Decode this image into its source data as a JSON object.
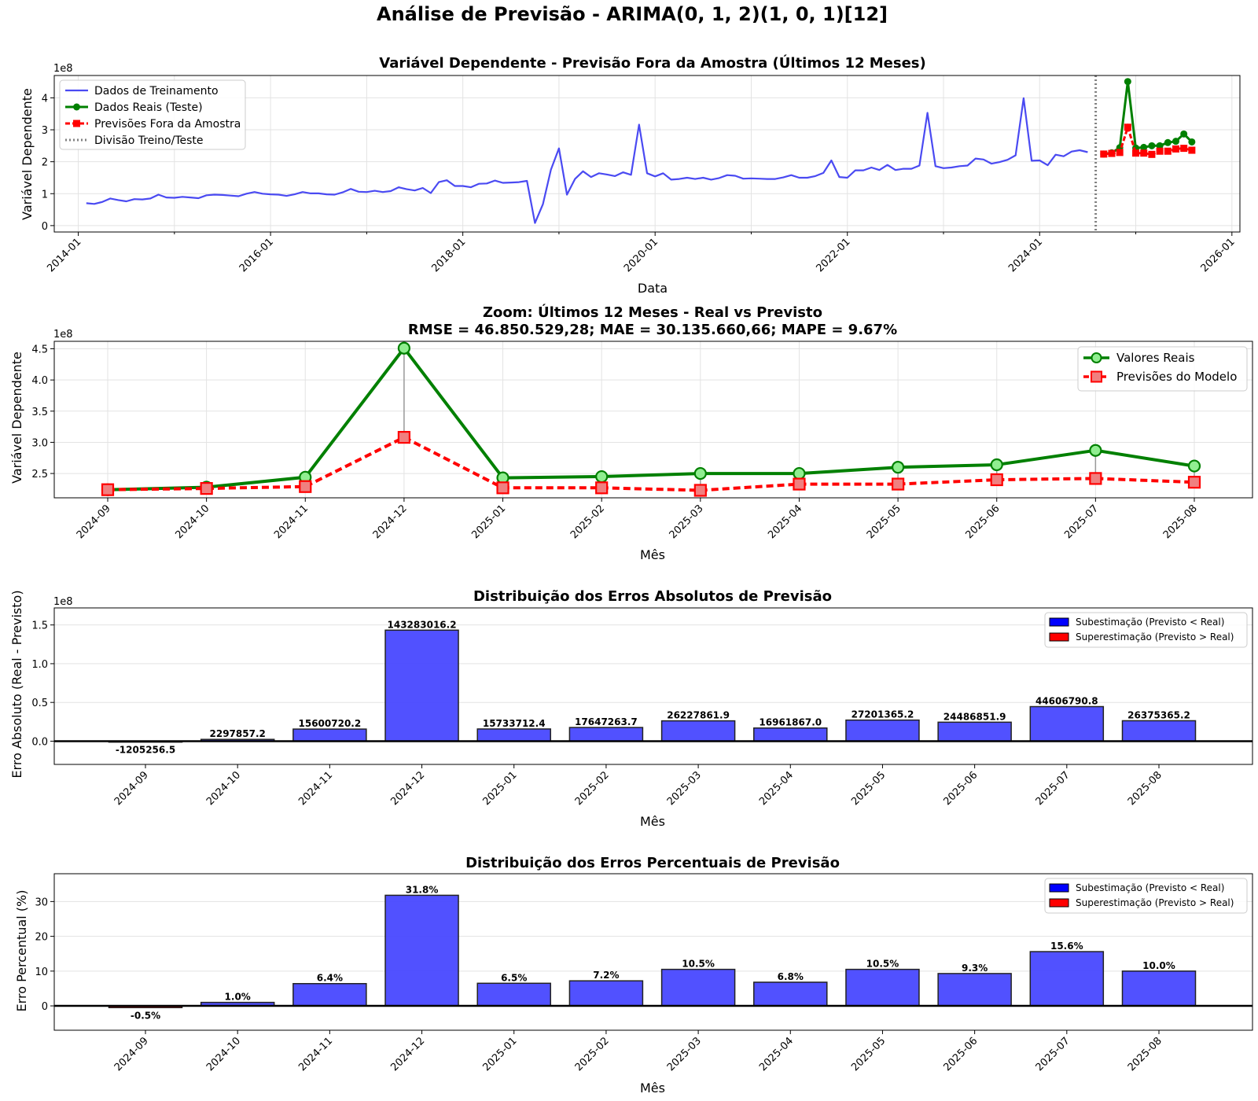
{
  "figure": {
    "title": "Análise de Previsão - ARIMA(0, 1, 2)(1, 0, 1)[12]"
  },
  "colors": {
    "train": "#4a4af2",
    "real": "#008000",
    "real_marker_fill": "#90ee90",
    "forecast": "#ff0000",
    "forecast_marker_fill": "#f08080",
    "under": "#4b4bff",
    "over": "#ff0000",
    "split": "#808080"
  },
  "chart_data": [
    {
      "id": "overview",
      "type": "line",
      "title": "Variável Dependente - Previsão Fora da Amostra (Últimos 12 Meses)",
      "xlabel": "Data",
      "ylabel": "Variável Dependente",
      "y_offset_label": "1e8",
      "y_scale": 100000000,
      "ylim": [
        -0.2,
        4.7
      ],
      "xlim": [
        "2013-10",
        "2026-02"
      ],
      "xticks": [
        "2014-01",
        "2016-01",
        "2018-01",
        "2020-01",
        "2022-01",
        "2024-01",
        "2026-01"
      ],
      "yticks": [
        0,
        1,
        2,
        3,
        4
      ],
      "split_date": "2024-08",
      "legend": {
        "position": "top-left",
        "entries": [
          "Dados de Treinamento",
          "Dados Reais (Teste)",
          "Previsões Fora da Amostra",
          "Divisão Treino/Teste"
        ]
      },
      "train": {
        "start": "2014-02",
        "values": [
          0.7,
          0.68,
          0.74,
          0.85,
          0.8,
          0.76,
          0.83,
          0.82,
          0.85,
          0.97,
          0.88,
          0.87,
          0.9,
          0.88,
          0.86,
          0.95,
          0.97,
          0.96,
          0.94,
          0.92,
          1.0,
          1.05,
          1.0,
          0.98,
          0.97,
          0.93,
          0.98,
          1.05,
          1.01,
          1.01,
          0.98,
          0.97,
          1.04,
          1.15,
          1.06,
          1.05,
          1.09,
          1.05,
          1.08,
          1.2,
          1.14,
          1.1,
          1.18,
          1.02,
          1.36,
          1.42,
          1.24,
          1.24,
          1.2,
          1.31,
          1.32,
          1.41,
          1.34,
          1.35,
          1.36,
          1.4,
          0.08,
          0.67,
          1.75,
          2.42,
          0.97,
          1.46,
          1.7,
          1.52,
          1.64,
          1.6,
          1.55,
          1.67,
          1.59,
          3.16,
          1.64,
          1.54,
          1.64,
          1.44,
          1.46,
          1.5,
          1.46,
          1.5,
          1.44,
          1.49,
          1.58,
          1.56,
          1.47,
          1.48,
          1.47,
          1.46,
          1.46,
          1.51,
          1.58,
          1.5,
          1.5,
          1.55,
          1.65,
          2.04,
          1.52,
          1.5,
          1.73,
          1.73,
          1.82,
          1.74,
          1.9,
          1.74,
          1.78,
          1.78,
          1.88,
          3.53,
          1.86,
          1.8,
          1.82,
          1.86,
          1.88,
          2.1,
          2.07,
          1.94,
          1.99,
          2.06,
          2.2,
          3.99,
          2.03,
          2.04,
          1.89,
          2.22,
          2.17,
          2.32,
          2.36,
          2.3
        ]
      },
      "test": {
        "start": "2024-09",
        "real": [
          2.24,
          2.28,
          2.44,
          4.51,
          2.43,
          2.45,
          2.5,
          2.5,
          2.6,
          2.64,
          2.87,
          2.62
        ],
        "forecast": [
          2.24,
          2.26,
          2.29,
          3.08,
          2.27,
          2.27,
          2.23,
          2.33,
          2.33,
          2.4,
          2.42,
          2.36
        ]
      }
    },
    {
      "id": "zoom",
      "type": "line",
      "title": "Zoom: Últimos 12 Meses - Real vs Previsto",
      "subtitle": "RMSE = 46.850.529,28; MAE = 30.135.660,66; MAPE = 9.67%",
      "xlabel": "Mês",
      "ylabel": "Variável Dependente",
      "y_offset_label": "1e8",
      "y_scale": 100000000,
      "ylim": [
        2.11,
        4.62
      ],
      "yticks": [
        "2.5",
        "3.0",
        "3.5",
        "4.0",
        "4.5"
      ],
      "categories": [
        "2024-09",
        "2024-10",
        "2024-11",
        "2024-12",
        "2025-01",
        "2025-02",
        "2025-03",
        "2025-04",
        "2025-05",
        "2025-06",
        "2025-07",
        "2025-08"
      ],
      "legend": {
        "position": "top-right",
        "entries": [
          "Valores Reais",
          "Previsões do Modelo"
        ]
      },
      "series": [
        {
          "name": "Valores Reais",
          "values": [
            2.24,
            2.28,
            2.44,
            4.51,
            2.43,
            2.45,
            2.5,
            2.5,
            2.6,
            2.64,
            2.87,
            2.62
          ]
        },
        {
          "name": "Previsões do Modelo",
          "values": [
            2.24,
            2.26,
            2.29,
            3.08,
            2.27,
            2.27,
            2.23,
            2.33,
            2.33,
            2.4,
            2.42,
            2.36
          ]
        }
      ]
    },
    {
      "id": "abs_errors",
      "type": "bar",
      "title": "Distribuição dos Erros Absolutos de Previsão",
      "xlabel": "Mês",
      "ylabel": "Erro Absoluto (Real - Previsto)",
      "y_offset_label": "1e8",
      "y_scale": 100000000,
      "ylim": [
        -0.3,
        1.72
      ],
      "yticks": [
        "0.0",
        "0.5",
        "1.0",
        "1.5"
      ],
      "categories": [
        "2024-09",
        "2024-10",
        "2024-11",
        "2024-12",
        "2025-01",
        "2025-02",
        "2025-03",
        "2025-04",
        "2025-05",
        "2025-06",
        "2025-07",
        "2025-08"
      ],
      "values": [
        -1205256.5,
        2297857.2,
        15600720.2,
        143283016.2,
        15733712.4,
        17647263.7,
        26227861.9,
        16961867.0,
        27201365.2,
        24486851.9,
        44606790.8,
        26375365.2
      ],
      "labels": [
        "-1205256.5",
        "2297857.2",
        "15600720.2",
        "143283016.2",
        "15733712.4",
        "17647263.7",
        "26227861.9",
        "16961867.0",
        "27201365.2",
        "24486851.9",
        "44606790.8",
        "26375365.2"
      ],
      "legend": {
        "position": "top-right",
        "entries": [
          "Subestimação (Previsto < Real)",
          "Superestimação (Previsto > Real)"
        ]
      }
    },
    {
      "id": "pct_errors",
      "type": "bar",
      "title": "Distribuição dos Erros Percentuais de Previsão",
      "xlabel": "Mês",
      "ylabel": "Erro Percentual (%)",
      "ylim": [
        -7,
        38
      ],
      "yticks": [
        "0",
        "10",
        "20",
        "30"
      ],
      "categories": [
        "2024-09",
        "2024-10",
        "2024-11",
        "2024-12",
        "2025-01",
        "2025-02",
        "2025-03",
        "2025-04",
        "2025-05",
        "2025-06",
        "2025-07",
        "2025-08"
      ],
      "values": [
        -0.5,
        1.0,
        6.4,
        31.8,
        6.5,
        7.2,
        10.5,
        6.8,
        10.5,
        9.3,
        15.6,
        10.0
      ],
      "labels": [
        "-0.5%",
        "1.0%",
        "6.4%",
        "31.8%",
        "6.5%",
        "7.2%",
        "10.5%",
        "6.8%",
        "10.5%",
        "9.3%",
        "15.6%",
        "10.0%"
      ],
      "legend": {
        "position": "top-right",
        "entries": [
          "Subestimação (Previsto < Real)",
          "Superestimação (Previsto > Real)"
        ]
      }
    }
  ]
}
